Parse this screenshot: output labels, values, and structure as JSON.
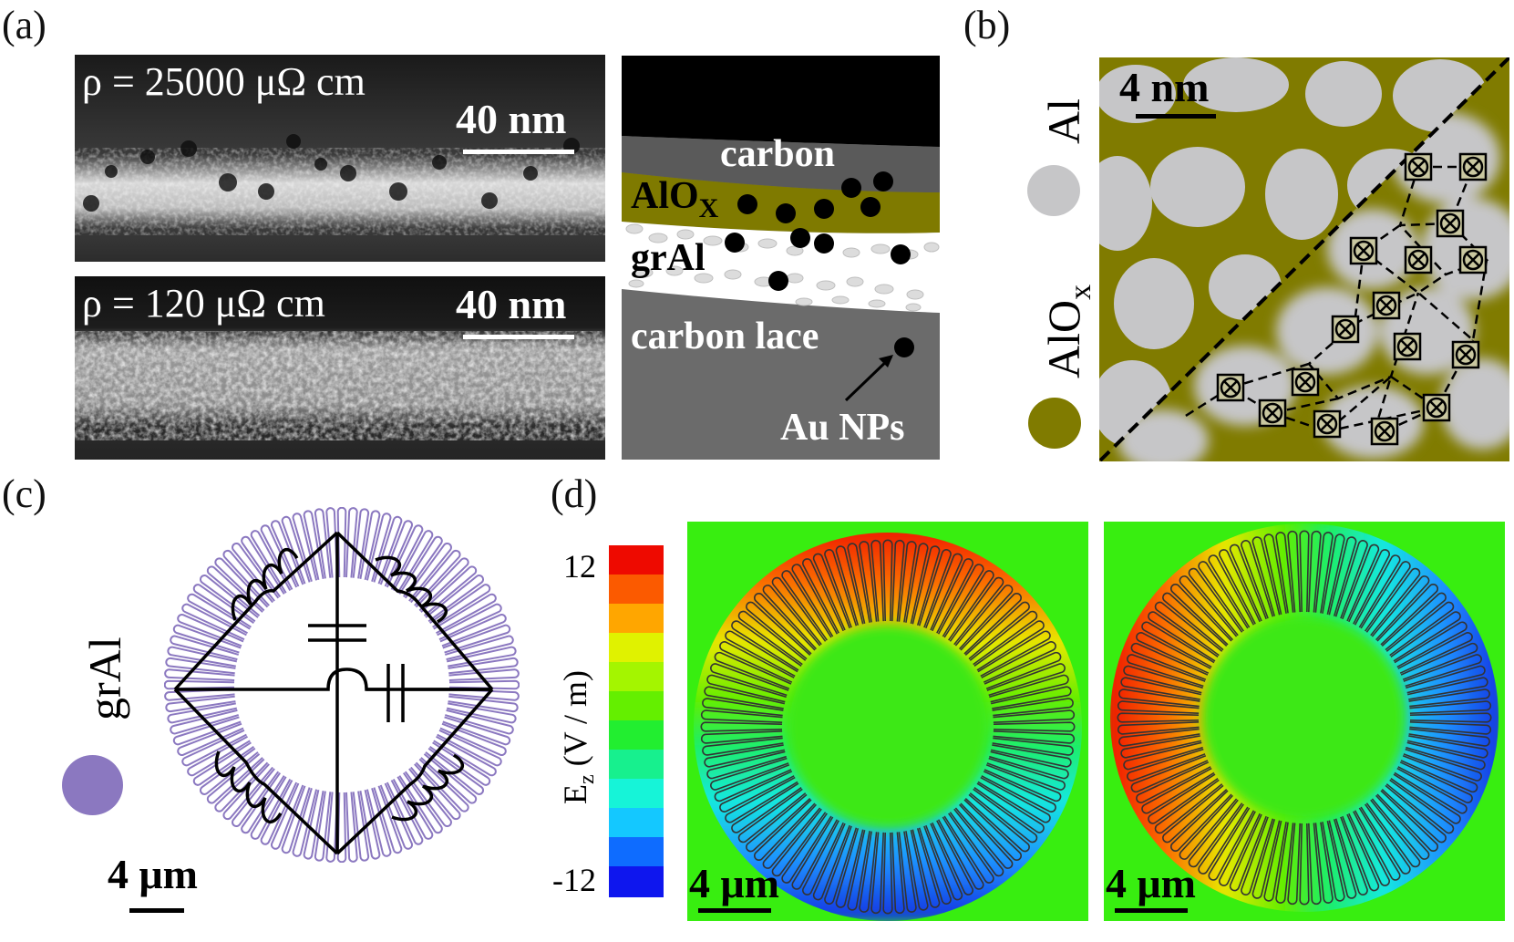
{
  "panels": {
    "a": {
      "label": "(a)",
      "top_image": {
        "rho_text": "ρ = 25000 μΩ cm",
        "scale": "40 nm"
      },
      "bottom_image": {
        "rho_text": "ρ = 120 μΩ cm",
        "scale": "40 nm"
      },
      "schematic": {
        "layer_carbon": "carbon",
        "layer_alox": "AlO",
        "layer_alox_sub": "X",
        "layer_gral": "grAl",
        "layer_lace": "carbon lace",
        "np_label": "Au NPs"
      }
    },
    "b": {
      "label": "(b)",
      "scale": "4 nm",
      "legend_al": "Al",
      "legend_alox": "AlO",
      "legend_alox_sub": "x",
      "colors": {
        "al": "#c6c6c8",
        "alox": "#807b00"
      }
    },
    "c": {
      "label": "(c)",
      "legend": "grAl",
      "scale": "4 μm",
      "colors": {
        "gral": "#8b78c0"
      }
    },
    "d": {
      "label": "(d)",
      "colorbar": {
        "max": "12",
        "min": "-12",
        "axis_label": "E",
        "axis_sub": "z",
        "axis_unit": " (V / m)"
      },
      "scale_left": "4 μm",
      "scale_right": "4 μm"
    }
  }
}
